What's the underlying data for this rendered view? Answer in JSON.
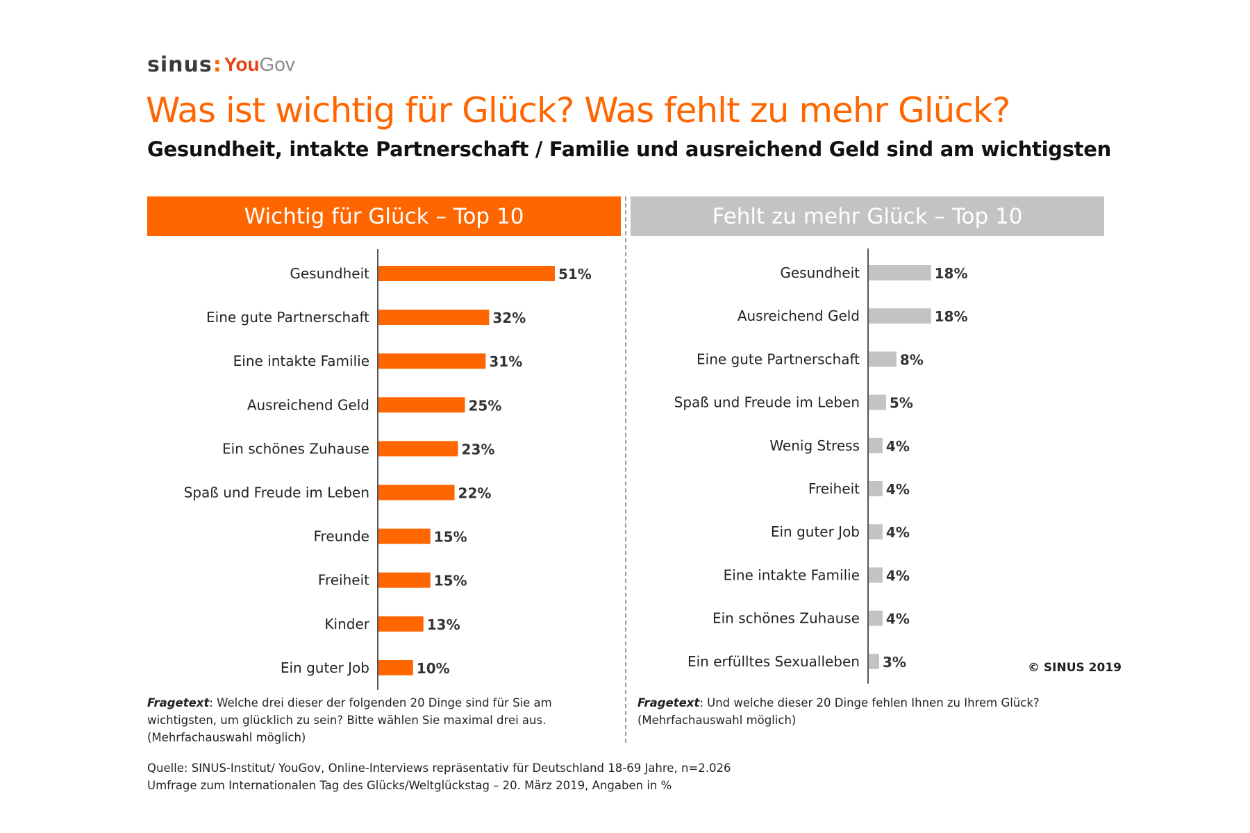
{
  "logo": {
    "sinus": "sinus",
    "you": "You",
    "gov": "Gov"
  },
  "title": "Was ist wichtig für Glück? Was fehlt zu mehr Glück?",
  "subtitle": "Gesundheit, intakte Partnerschaft / Familie und ausreichend Geld sind am wichtigsten",
  "colors": {
    "orange": "#ff6600",
    "grey": "#c3c3c3",
    "axis": "#555555"
  },
  "chart_data": [
    {
      "type": "bar",
      "orientation": "horizontal",
      "title": "Wichtig für Glück – Top 10",
      "categories": [
        "Gesundheit",
        "Eine gute Partnerschaft",
        "Eine intakte Familie",
        "Ausreichend Geld",
        "Ein schönes Zuhause",
        "Spaß und Freude im Leben",
        "Freunde",
        "Freiheit",
        "Kinder",
        "Ein guter Job"
      ],
      "values": [
        51,
        32,
        31,
        25,
        23,
        22,
        15,
        15,
        13,
        10
      ],
      "value_labels": [
        "51%",
        "32%",
        "31%",
        "25%",
        "23%",
        "22%",
        "15%",
        "15%",
        "13%",
        "10%"
      ],
      "unit": "%",
      "color": "#ff6600",
      "xlim": [
        0,
        51
      ]
    },
    {
      "type": "bar",
      "orientation": "horizontal",
      "title": "Fehlt zu mehr Glück – Top 10",
      "categories": [
        "Gesundheit",
        "Ausreichend Geld",
        "Eine gute Partnerschaft",
        "Spaß und Freude im Leben",
        "Wenig Stress",
        "Freiheit",
        "Ein guter Job",
        "Eine intakte Familie",
        "Ein schönes Zuhause",
        "Ein erfülltes Sexualleben"
      ],
      "values": [
        18,
        18,
        8,
        5,
        4,
        4,
        4,
        4,
        4,
        3
      ],
      "value_labels": [
        "18%",
        "18%",
        "8%",
        "5%",
        "4%",
        "4%",
        "4%",
        "4%",
        "4%",
        "3%"
      ],
      "unit": "%",
      "color": "#c3c3c3",
      "xlim": [
        0,
        51
      ]
    }
  ],
  "fragetext": {
    "label": "Fragetext",
    "left_rest": ": Welche drei dieser der folgenden 20 Dinge sind für Sie am wichtigsten, um glücklich zu sein? Bitte wählen Sie maximal drei aus. (Mehrfachauswahl möglich)",
    "right_rest": ": Und welche dieser 20 Dinge fehlen Ihnen zu Ihrem Glück? (Mehrfachauswahl möglich)"
  },
  "source": {
    "line1": "Quelle: SINUS-Institut/ YouGov, Online-Interviews repräsentativ für Deutschland 18-69 Jahre, n=2.026",
    "line2": "Umfrage zum Internationalen Tag des Glücks/Weltglückstag – 20. März 2019, Angaben in %"
  },
  "copyright": "© SINUS 2019"
}
